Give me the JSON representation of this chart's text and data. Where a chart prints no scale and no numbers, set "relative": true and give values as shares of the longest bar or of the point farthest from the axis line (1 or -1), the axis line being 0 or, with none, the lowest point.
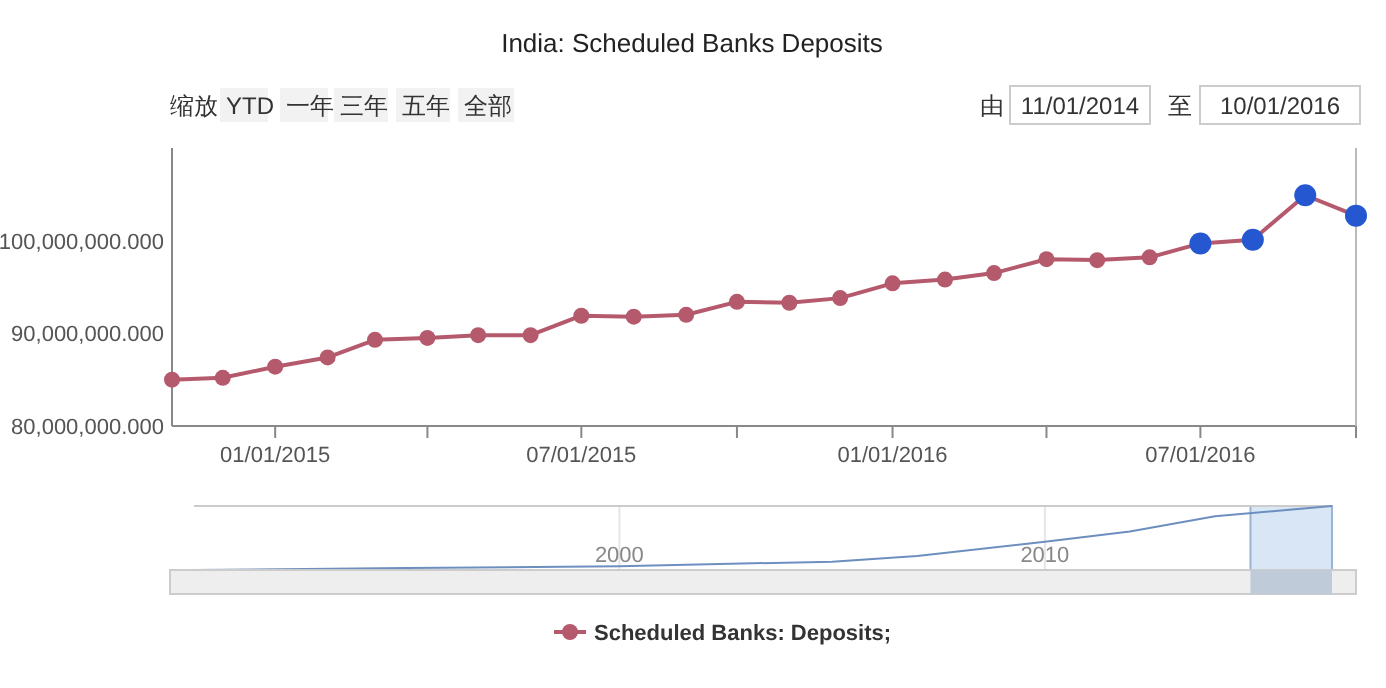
{
  "chart_data": [
    {
      "type": "line",
      "title": "India: Scheduled Banks Deposits",
      "x": [
        "2014-11-01",
        "2014-12-01",
        "2015-01-01",
        "2015-02-01",
        "2015-03-01",
        "2015-04-01",
        "2015-05-01",
        "2015-06-01",
        "2015-07-01",
        "2015-08-01",
        "2015-09-01",
        "2015-10-01",
        "2015-11-01",
        "2015-12-01",
        "2016-01-01",
        "2016-02-01",
        "2016-03-01",
        "2016-04-01",
        "2016-05-01",
        "2016-06-01",
        "2016-07-01",
        "2016-08-01",
        "2016-09-01",
        "2016-10-01"
      ],
      "series": [
        {
          "name": "Scheduled Banks: Deposits;",
          "color": "#b5596d",
          "colors": [
            "#b5596d",
            "#b5596d",
            "#b5596d",
            "#b5596d",
            "#b5596d",
            "#b5596d",
            "#b5596d",
            "#b5596d",
            "#b5596d",
            "#b5596d",
            "#b5596d",
            "#b5596d",
            "#b5596d",
            "#b5596d",
            "#b5596d",
            "#b5596d",
            "#b5596d",
            "#b5596d",
            "#b5596d",
            "#b5596d",
            "#2457d0",
            "#2457d0",
            "#2457d0",
            "#2457d0"
          ],
          "values": [
            85000000,
            85200000,
            86400000,
            87400000,
            89300000,
            89500000,
            89800000,
            89800000,
            91900000,
            91800000,
            92000000,
            93400000,
            93300000,
            93800000,
            95400000,
            95800000,
            96500000,
            98000000,
            97900000,
            98200000,
            99700000,
            100100000,
            104900000,
            102700000
          ]
        }
      ],
      "xlim": [
        "2014-11-01",
        "2016-10-01"
      ],
      "xticks": [
        {
          "value": "2015-01-01",
          "label": "01/01/2015"
        },
        {
          "value": "2015-04-01",
          "label": null
        },
        {
          "value": "2015-07-01",
          "label": "07/01/2015"
        },
        {
          "value": "2015-10-01",
          "label": null
        },
        {
          "value": "2016-01-01",
          "label": "01/01/2016"
        },
        {
          "value": "2016-04-01",
          "label": null
        },
        {
          "value": "2016-07-01",
          "label": "07/01/2016"
        },
        {
          "value": "2016-10-01",
          "label": null
        }
      ],
      "ylim": [
        80000000,
        110000000
      ],
      "yticks": [
        {
          "value": 80000000,
          "label": "80,000,000.000"
        },
        {
          "value": 90000000,
          "label": "90,000,000.000"
        },
        {
          "value": 100000000,
          "label": "100,000,000.000"
        }
      ],
      "marker": "circle",
      "legend": "bottom",
      "grid": false,
      "annotations": [
        "缩放",
        "YTD",
        "一年",
        "三年",
        "五年",
        "全部",
        "由",
        "11/01/2014",
        "至",
        "10/01/2016"
      ]
    },
    {
      "type": "line",
      "relative": true,
      "x": [
        "1990",
        "1995",
        "2000",
        "2005",
        "2007",
        "2010",
        "2012",
        "2014",
        "2016-10"
      ],
      "series": [
        {
          "color": "#6d8fbf",
          "values": [
            0,
            0.03,
            0.06,
            0.13,
            0.22,
            0.44,
            0.6,
            0.84,
            1
          ]
        }
      ],
      "xlim": [
        "1990",
        "2016-10"
      ],
      "xticks": [
        {
          "value": "2000",
          "label": "2000"
        },
        {
          "value": "2010",
          "label": "2010"
        }
      ],
      "grid": "x",
      "bands": [
        {
          "axis": "x",
          "from": "2014-11",
          "to": "2016-10",
          "color": "#cfe0f3"
        }
      ]
    }
  ]
}
